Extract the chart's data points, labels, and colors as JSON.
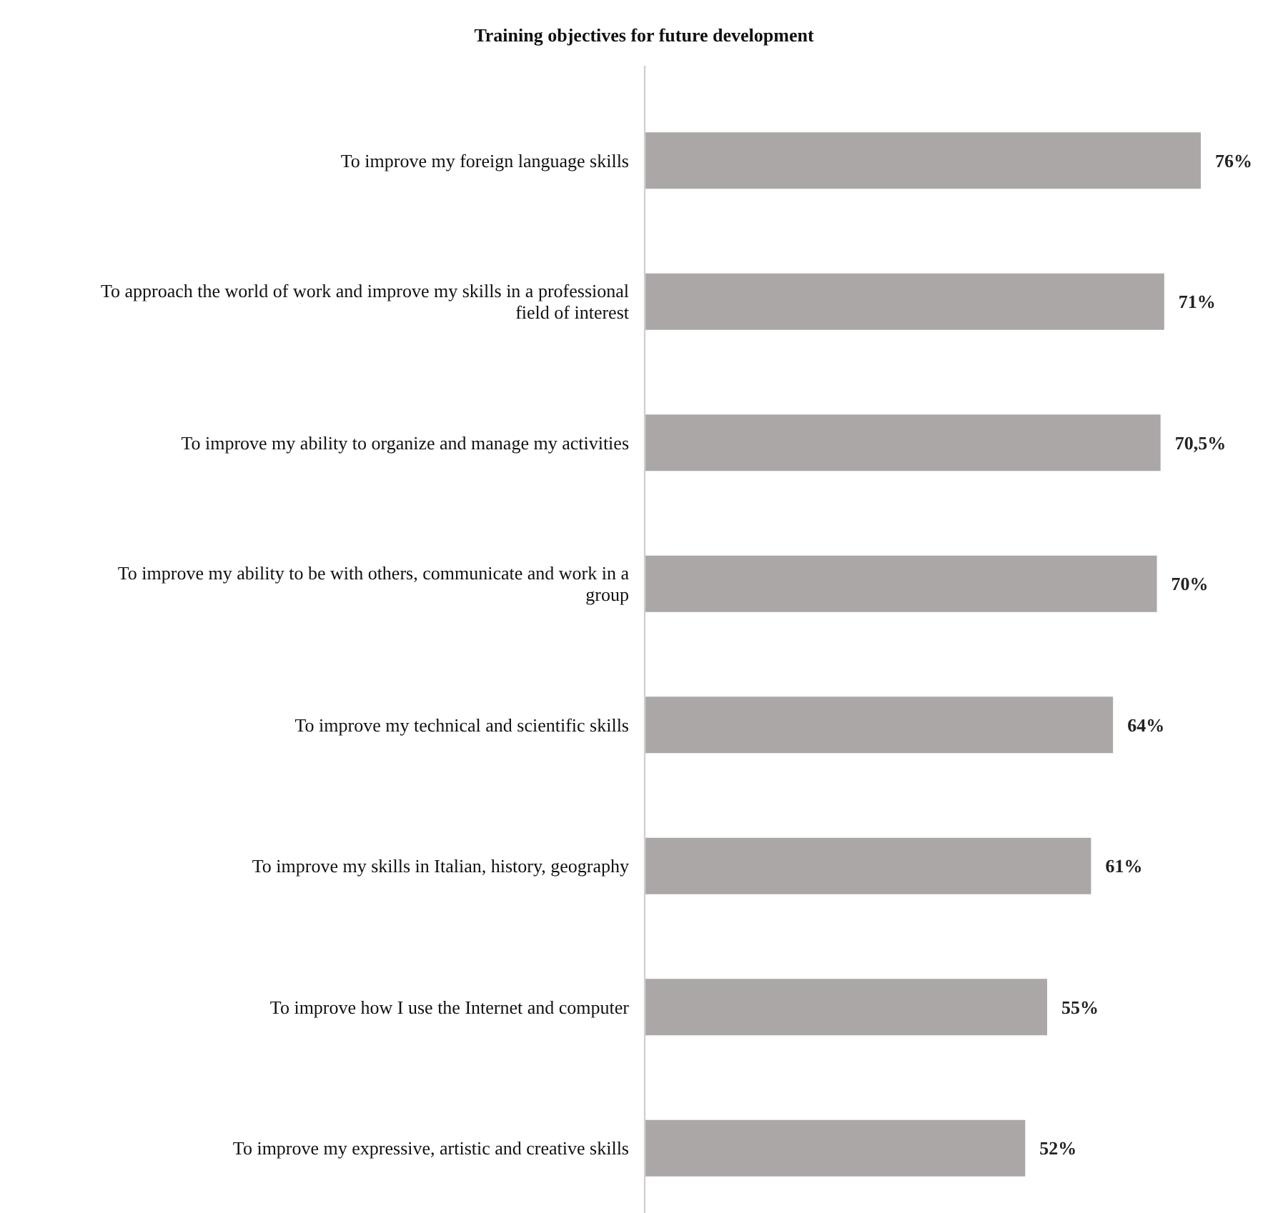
{
  "chart_data": {
    "type": "bar",
    "orientation": "horizontal",
    "title": "Training objectives for future development",
    "categories": [
      "To improve my foreign language skills",
      "To approach the world of work and improve my skills in a professional field of interest",
      "To improve my ability to organize and manage my activities",
      "To improve my ability to be with others, communicate and work in a group",
      "To improve my technical and scientific skills",
      "To improve my skills in Italian, history, geography",
      "To improve how I use the Internet and computer",
      "To improve my expressive, artistic and creative skills"
    ],
    "values": [
      76,
      71,
      70.5,
      70,
      64,
      61,
      55,
      52
    ],
    "value_labels": [
      "76%",
      "71%",
      "70,5%",
      "70%",
      "64%",
      "61%",
      "55%",
      "52%"
    ],
    "color": "#aba7a7"
  }
}
